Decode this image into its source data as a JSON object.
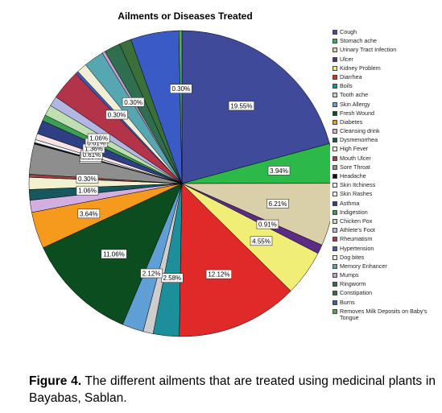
{
  "figure": {
    "caption_label": "Figure 4.",
    "caption_text": " The different ailments that are treated using medicinal plants in Bayabas, Sablan."
  },
  "chart_data": {
    "type": "pie",
    "title": "Ailments or Diseases Treated",
    "legend_position": "right",
    "categories": [
      "Cough",
      "Stomach ache",
      "Urinary Tract Infection",
      "Ulcer",
      "Kidney Problem",
      "Diarrhea",
      "Boils",
      "Tooth ache",
      "Skin Allergy",
      "Fresh Wound",
      "Diabetes",
      "Cleansing drink",
      "Dysmenorrhea",
      "High Fever",
      "Mouth Ulcer",
      "Sore Throat",
      "Headache",
      "Skin Itchiness",
      "Skin Rashes",
      "Asthma",
      "Indigestion",
      "Chicken Pox",
      "Athlete's Foot",
      "Rheumatism",
      "Hypertension",
      "Dog bites",
      "Memory Enhancer",
      "Mumps",
      "Ringworm",
      "Constipation",
      "Burns",
      "Removes Milk Deposits on Baby's Tongue"
    ],
    "colors": [
      "#3f4a9a",
      "#2db84a",
      "#d9cfa9",
      "#5b2b86",
      "#f1ee78",
      "#e02a2a",
      "#1d8f9a",
      "#cdcdcd",
      "#5f9fd6",
      "#0b4d1f",
      "#f59a1c",
      "#d3aee0",
      "#17585e",
      "#f1f1cf",
      "#a04040",
      "#8e8e8e",
      "#111111",
      "#e4f2fb",
      "#fde4e4",
      "#2f3f86",
      "#3b9e55",
      "#bfdfb0",
      "#b2b6e3",
      "#b33348",
      "#3d5bb8",
      "#f0efd6",
      "#57a7b3",
      "#c8a0d0",
      "#2f6f4f",
      "#3b6f3a",
      "#3a5ac6",
      "#4fb04f"
    ],
    "slices": [
      {
        "category": "Cough",
        "value": 19.55,
        "label": "19.55%"
      },
      {
        "category": "Stomach ache",
        "value": 3.94,
        "label": "3.94%"
      },
      {
        "category": "Urinary Tract Infection",
        "value": 6.21,
        "label": "6.21%"
      },
      {
        "category": "Ulcer",
        "value": 0.91,
        "label": "0.91%"
      },
      {
        "category": "Kidney Problem",
        "value": 4.55,
        "label": "4.55%"
      },
      {
        "category": "Diarrhea",
        "value": 12.12,
        "label": "12.12%"
      },
      {
        "category": "Boils",
        "value": 2.58,
        "label": "2.58%"
      },
      {
        "category": "Tooth ache",
        "value": 1.0,
        "label": ""
      },
      {
        "category": "Skin Allergy",
        "value": 2.12,
        "label": "2.12%"
      },
      {
        "category": "Fresh Wound",
        "value": 11.06,
        "label": "11.06%"
      },
      {
        "category": "Diabetes",
        "value": 3.64,
        "label": "3.64%"
      },
      {
        "category": "Cleansing drink",
        "value": 1.2,
        "label": ""
      },
      {
        "category": "Dysmenorrhea",
        "value": 1.06,
        "label": "1.06%"
      },
      {
        "category": "High Fever",
        "value": 1.2,
        "label": ""
      },
      {
        "category": "Mouth Ulcer",
        "value": 0.3,
        "label": "0.30%"
      },
      {
        "category": "Sore Throat",
        "value": 3.0,
        "label": ""
      },
      {
        "category": "Headache",
        "value": 0.15,
        "label": "0.15%"
      },
      {
        "category": "Skin Itchiness",
        "value": 0.3,
        "label": "0.30%"
      },
      {
        "category": "Skin Rashes",
        "value": 0.61,
        "label": "0.61%"
      },
      {
        "category": "Asthma",
        "value": 1.36,
        "label": "1.36%"
      },
      {
        "category": "Indigestion",
        "value": 0.61,
        "label": "0.61%"
      },
      {
        "category": "Chicken Pox",
        "value": 1.06,
        "label": "1.06%"
      },
      {
        "category": "Athlete's Foot",
        "value": 1.0,
        "label": ""
      },
      {
        "category": "Rheumatism",
        "value": 3.0,
        "label": ""
      },
      {
        "category": "Hypertension",
        "value": 0.3,
        "label": "0.30%"
      },
      {
        "category": "Dog bites",
        "value": 1.0,
        "label": ""
      },
      {
        "category": "Memory Enhancer",
        "value": 2.0,
        "label": ""
      },
      {
        "category": "Mumps",
        "value": 0.3,
        "label": "0.30%"
      },
      {
        "category": "Ringworm",
        "value": 1.6,
        "label": ""
      },
      {
        "category": "Constipation",
        "value": 1.2,
        "label": ""
      },
      {
        "category": "Burns",
        "value": 4.8,
        "label": ""
      },
      {
        "category": "Removes Milk Deposits on Baby's Tongue",
        "value": 0.3,
        "label": "0.30%"
      }
    ]
  }
}
